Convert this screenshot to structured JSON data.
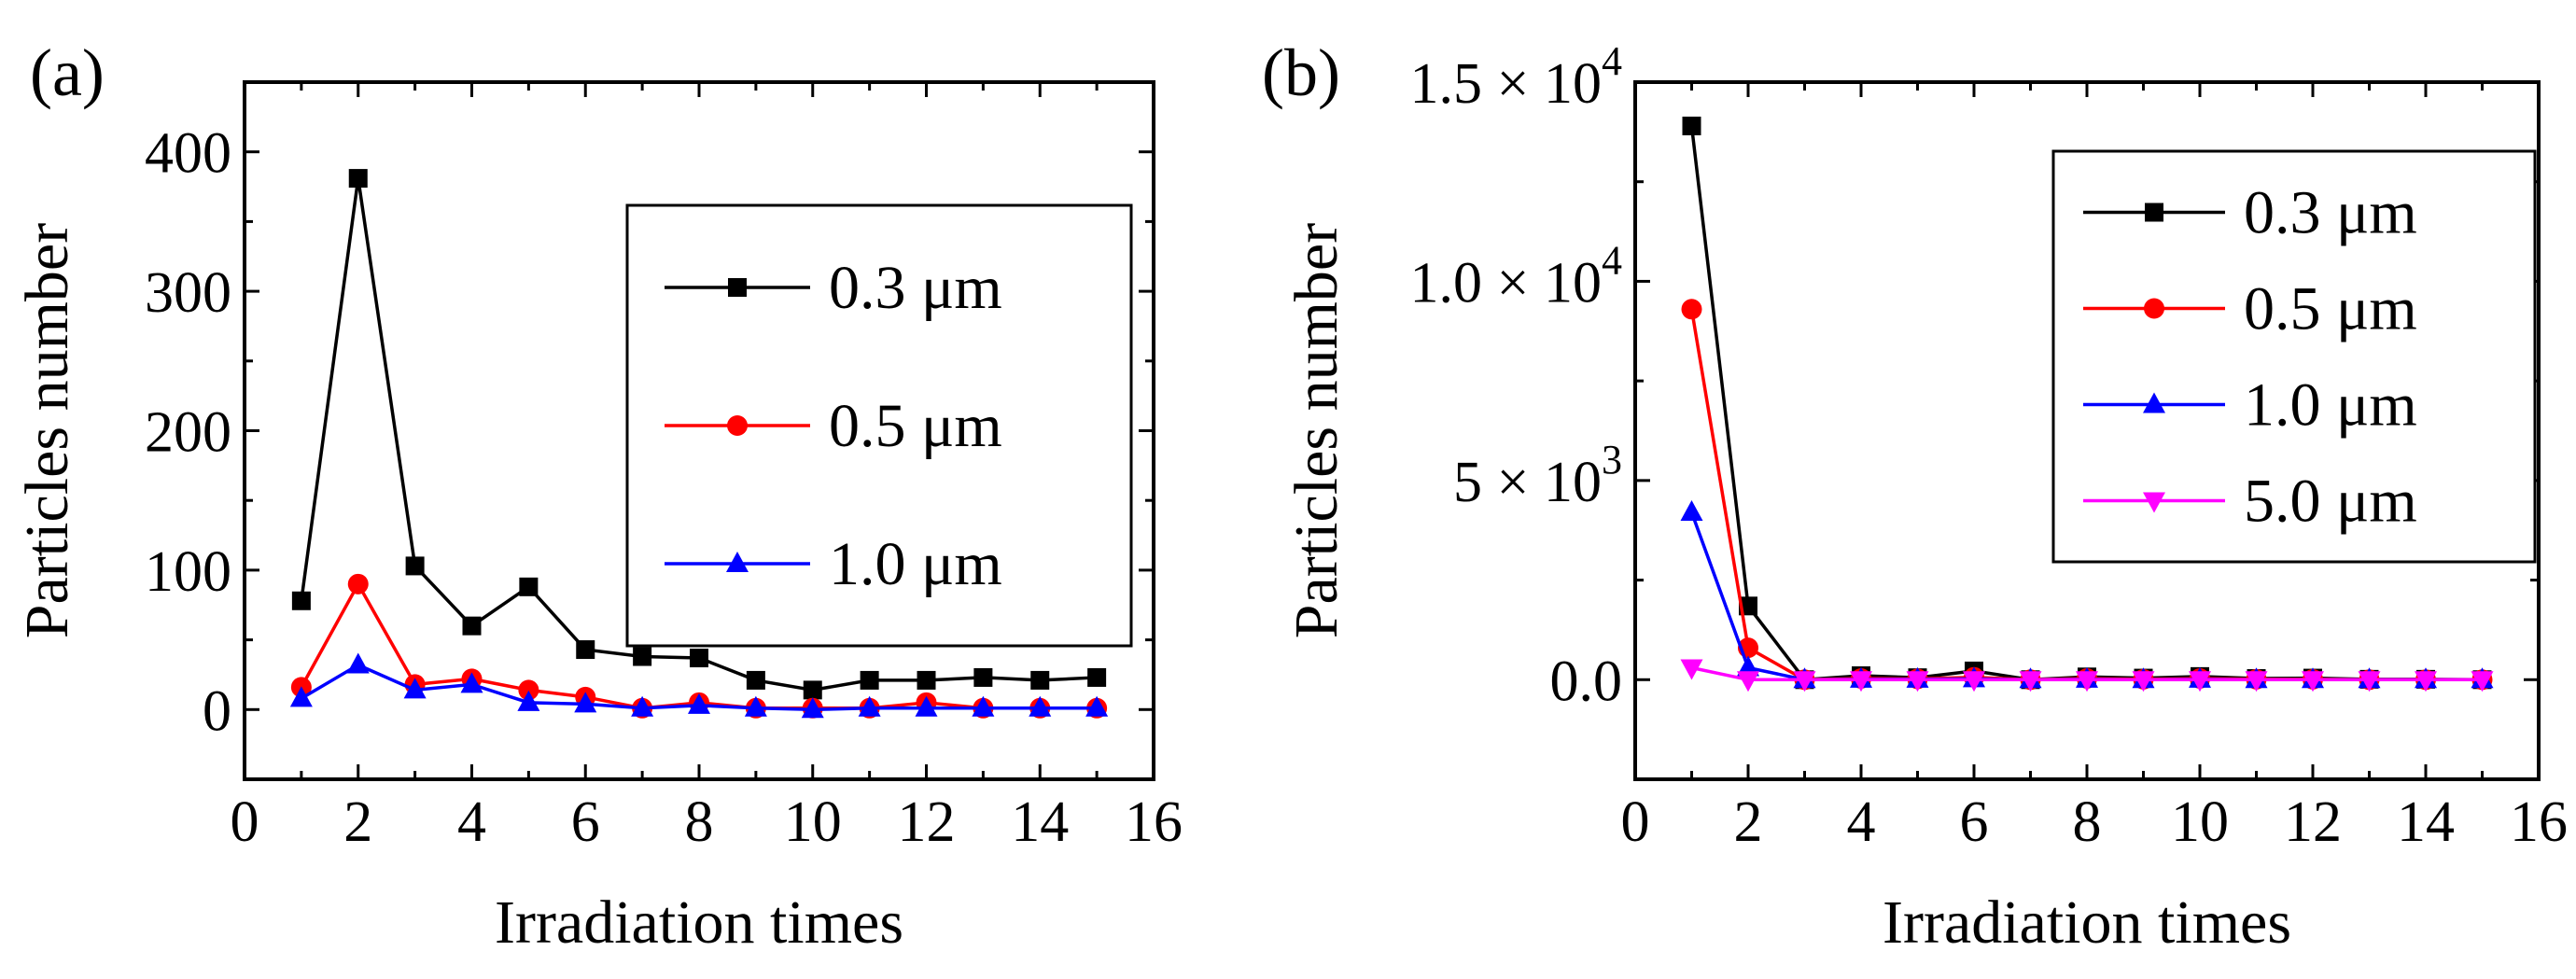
{
  "figure": {
    "panels": [
      "(a)",
      "(b)"
    ]
  },
  "chart_data": [
    {
      "type": "line",
      "panel_label": "(a)",
      "xlabel": "Irradiation times",
      "ylabel": "Particles number",
      "xlim": [
        0,
        16
      ],
      "ylim": [
        -50,
        450
      ],
      "xticks": [
        0,
        2,
        4,
        6,
        8,
        10,
        12,
        14,
        16
      ],
      "xtick_labels": [
        "0",
        "2",
        "4",
        "6",
        "8",
        "10",
        "12",
        "14",
        "16"
      ],
      "yticks": [
        0,
        100,
        200,
        300,
        400
      ],
      "ytick_labels": [
        "0",
        "100",
        "200",
        "300",
        "400"
      ],
      "legend_position": "top-right",
      "x": [
        1,
        2,
        3,
        4,
        5,
        6,
        7,
        8,
        9,
        10,
        11,
        12,
        13,
        14,
        15
      ],
      "series": [
        {
          "name": "0.3 μm",
          "color": "#000000",
          "marker": "square",
          "values": [
            78,
            381,
            103,
            60,
            88,
            43,
            38,
            37,
            21,
            14,
            21,
            21,
            23,
            21,
            23
          ]
        },
        {
          "name": "0.5 μm",
          "color": "#ff0000",
          "marker": "circle",
          "values": [
            16,
            90,
            18,
            22,
            14,
            9,
            1,
            5,
            1,
            1,
            1,
            5,
            1,
            1,
            1
          ]
        },
        {
          "name": "1.0 μm",
          "color": "#0000ff",
          "marker": "triangle-up",
          "values": [
            8,
            32,
            14,
            18,
            5,
            4,
            1,
            3,
            1,
            0,
            1,
            1,
            1,
            1,
            1
          ]
        }
      ]
    },
    {
      "type": "line",
      "panel_label": "(b)",
      "xlabel": "Irradiation times",
      "ylabel": "Particles number",
      "xlim": [
        0,
        16
      ],
      "ylim": [
        -2500,
        15000
      ],
      "xticks": [
        0,
        2,
        4,
        6,
        8,
        10,
        12,
        14,
        16
      ],
      "xtick_labels": [
        "0",
        "2",
        "4",
        "6",
        "8",
        "10",
        "12",
        "14",
        "16"
      ],
      "yticks": [
        0,
        5000,
        10000,
        15000
      ],
      "ytick_labels": [
        {
          "mant": "0.0",
          "exp": ""
        },
        {
          "mant": "5 × 10",
          "exp": "3"
        },
        {
          "mant": "1.0 × 10",
          "exp": "4"
        },
        {
          "mant": "1.5 × 10",
          "exp": "4"
        }
      ],
      "legend_position": "top-right",
      "x": [
        1,
        2,
        3,
        4,
        5,
        6,
        7,
        8,
        9,
        10,
        11,
        12,
        13,
        14,
        15
      ],
      "series": [
        {
          "name": "0.3 μm",
          "color": "#000000",
          "marker": "square",
          "values": [
            13900,
            1850,
            0,
            100,
            50,
            220,
            0,
            70,
            40,
            80,
            30,
            40,
            10,
            10,
            0
          ]
        },
        {
          "name": "0.5 μm",
          "color": "#ff0000",
          "marker": "circle",
          "values": [
            9300,
            800,
            0,
            30,
            20,
            60,
            0,
            30,
            10,
            30,
            10,
            10,
            0,
            0,
            0
          ]
        },
        {
          "name": "1.0 μm",
          "color": "#0000ff",
          "marker": "triangle-up",
          "values": [
            4200,
            300,
            0,
            10,
            10,
            20,
            0,
            10,
            0,
            10,
            0,
            0,
            0,
            0,
            0
          ]
        },
        {
          "name": "5.0 μm",
          "color": "#ff00ff",
          "marker": "triangle-down",
          "values": [
            300,
            0,
            0,
            0,
            0,
            0,
            0,
            0,
            0,
            0,
            0,
            0,
            0,
            0,
            0
          ]
        }
      ]
    }
  ]
}
